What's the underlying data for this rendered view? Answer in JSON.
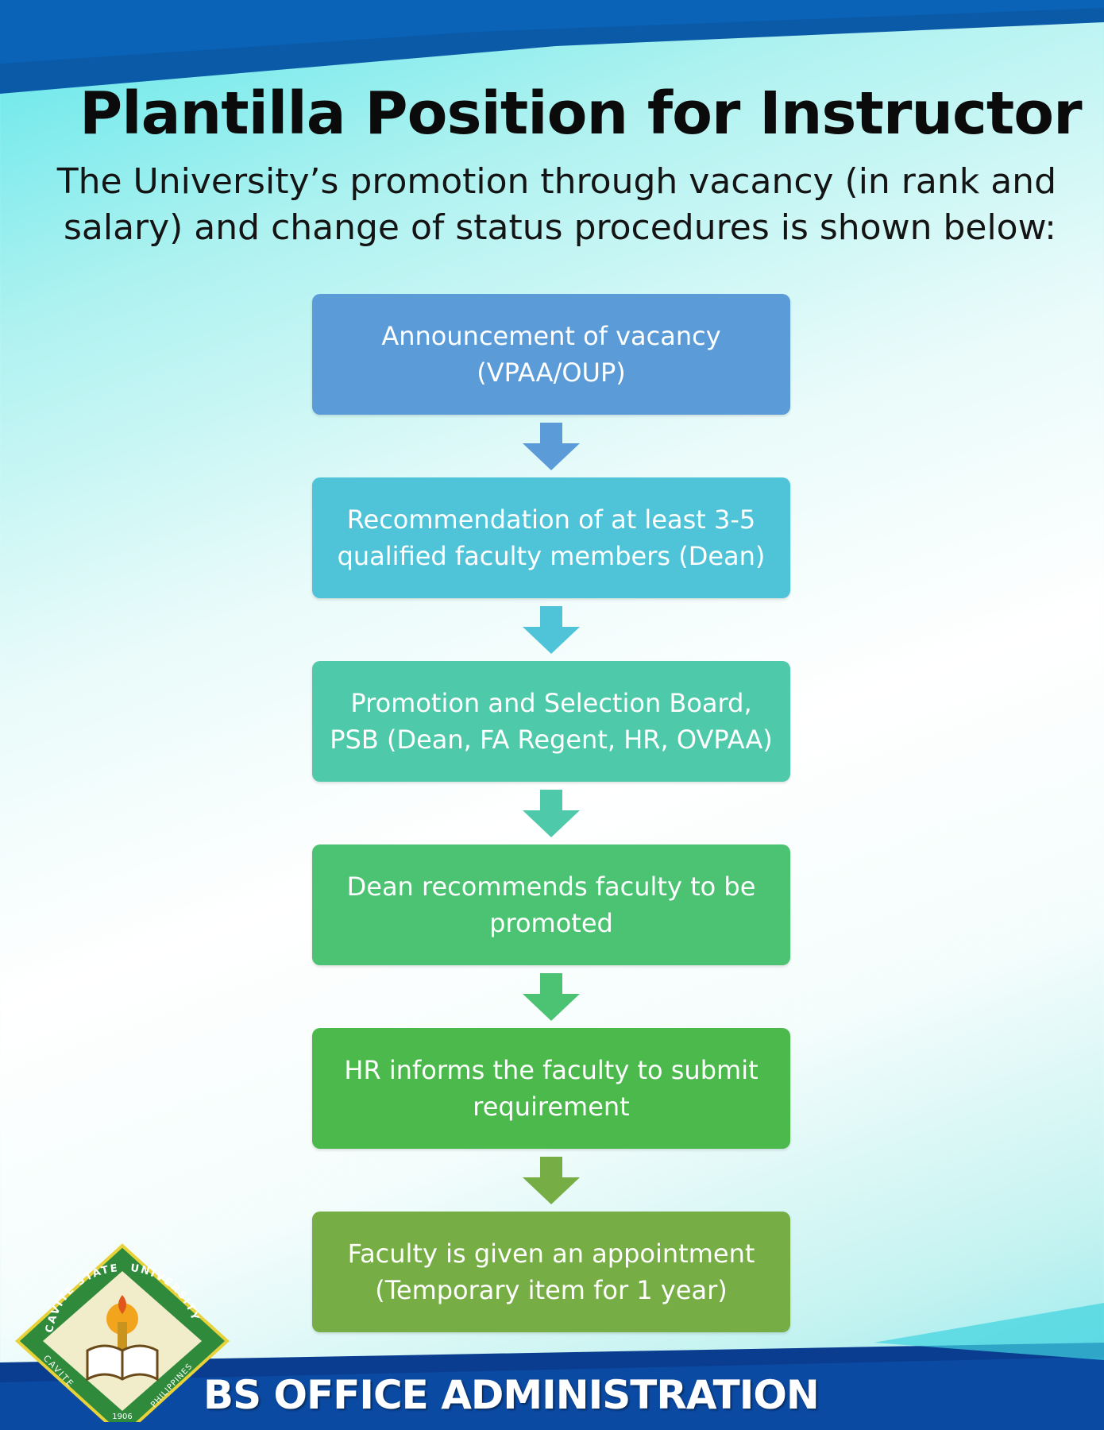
{
  "title": "Plantilla Position for Instructor I",
  "subtitle_line1": "The University’s promotion through vacancy (in rank and",
  "subtitle_line2": "salary) and change of status procedures is shown below:",
  "steps": [
    {
      "label_line1": "Announcement of vacancy",
      "label_line2": "(VPAA/OUP)",
      "color": "#5b9bd8"
    },
    {
      "label_line1": "Recommendation of at least 3-5",
      "label_line2": "qualified faculty members (Dean)",
      "color": "#4fc3d7"
    },
    {
      "label_line1": "Promotion and Selection Board,",
      "label_line2": "PSB (Dean, FA Regent, HR, OVPAA)",
      "color": "#4ec9a9"
    },
    {
      "label_line1": "Dean recommends faculty to be",
      "label_line2": "promoted",
      "color": "#4cc373"
    },
    {
      "label_line1": "HR informs the faculty to submit",
      "label_line2": "requirement",
      "color": "#4bb94b"
    },
    {
      "label_line1": "Faculty is given an appointment",
      "label_line2": "(Temporary item for 1 year)",
      "color": "#76ad44"
    }
  ],
  "arrow_colors": [
    "#5b9bd8",
    "#4fc3d7",
    "#4ec9a9",
    "#4cc373",
    "#76ad44"
  ],
  "logo": {
    "arc_top": "CAVITE STATE",
    "arc_right": "UNIVERSITY",
    "arc_bottom_left": "CAVITE",
    "arc_bottom_right": "PHILIPPINES",
    "year": "1906"
  },
  "footer": "BS OFFICE ADMINISTRATION",
  "colors": {
    "top_band": "#0a5aa8",
    "bottom_band": "#0a3d8f",
    "accent": "#5fe6ea"
  }
}
